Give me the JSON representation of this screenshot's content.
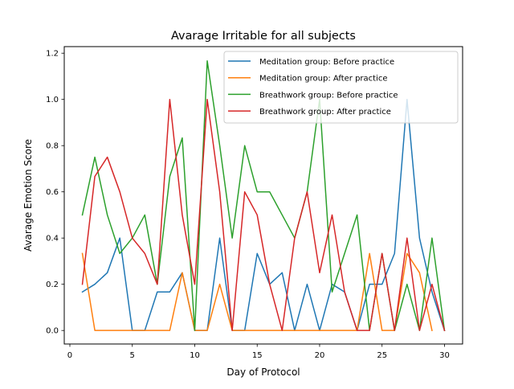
{
  "chart_data": {
    "type": "line",
    "title": "Avarage Irritable for all subjects",
    "xlabel": "Day of Protocol",
    "ylabel": "Avarage Emotion Score",
    "xlim": [
      -0.45,
      31.45
    ],
    "ylim": [
      -0.0585,
      1.2285
    ],
    "xticks": [
      0,
      5,
      10,
      15,
      20,
      25,
      30
    ],
    "yticks": [
      0.0,
      0.2,
      0.4,
      0.6,
      0.8,
      1.0,
      1.2
    ],
    "xtick_labels": [
      "0",
      "5",
      "10",
      "15",
      "20",
      "25",
      "30"
    ],
    "ytick_labels": [
      "0.0",
      "0.2",
      "0.4",
      "0.6",
      "0.8",
      "1.0",
      "1.2"
    ],
    "grid": false,
    "legend_position": "top-right",
    "series": [
      {
        "name": "Meditation group: Before practice",
        "color": "#1f77b4",
        "x": [
          1,
          2,
          3,
          4,
          5,
          6,
          7,
          8,
          9,
          10,
          11,
          12,
          13,
          14,
          15,
          16,
          17,
          18,
          19,
          20,
          21,
          22,
          23,
          24,
          25,
          26,
          27,
          28,
          29,
          30
        ],
        "y": [
          0.1667,
          0.2,
          0.25,
          0.4,
          0.0,
          0.0,
          0.1667,
          0.1667,
          0.25,
          0.0,
          0.0,
          0.4,
          0.0,
          0.0,
          0.3333,
          0.2,
          0.25,
          0.0,
          0.2,
          0.0,
          0.2,
          0.1667,
          0.0,
          0.2,
          0.2,
          0.3333,
          1.0,
          0.4,
          0.1667,
          0.0
        ]
      },
      {
        "name": "Meditation group: After practice",
        "color": "#ff7f0e",
        "x": [
          1,
          2,
          3,
          4,
          5,
          6,
          7,
          8,
          9,
          10,
          11,
          12,
          13,
          14,
          15,
          16,
          17,
          18,
          19,
          20,
          21,
          22,
          23,
          24,
          25,
          26,
          27,
          28,
          29
        ],
        "y": [
          0.3333,
          0.0,
          0.0,
          0.0,
          0.0,
          0.0,
          0.0,
          0.0,
          0.25,
          0.0,
          0.0,
          0.2,
          0.0,
          0.0,
          0.0,
          0.0,
          0.0,
          0.0,
          0.0,
          0.0,
          0.0,
          0.0,
          0.0,
          0.3333,
          0.0,
          0.0,
          0.3333,
          0.25,
          0.0
        ]
      },
      {
        "name": "Breathwork group: Before practice",
        "color": "#2ca02c",
        "x": [
          1,
          2,
          3,
          4,
          5,
          6,
          7,
          8,
          9,
          10,
          11,
          12,
          13,
          14,
          15,
          16,
          17,
          18,
          19,
          20,
          21,
          22,
          23,
          24,
          25,
          26,
          27,
          28,
          29,
          30
        ],
        "y": [
          0.5,
          0.75,
          0.5,
          0.3333,
          0.4,
          0.5,
          0.2,
          0.6667,
          0.8333,
          0.0,
          1.1667,
          0.8,
          0.4,
          0.8,
          0.6,
          0.6,
          0.5,
          0.4,
          0.6,
          1.0,
          0.1667,
          0.3333,
          0.5,
          0.0,
          0.3333,
          0.0,
          0.2,
          0.0,
          0.4,
          0.0
        ]
      },
      {
        "name": "Breathwork group: After practice",
        "color": "#d62728",
        "x": [
          1,
          2,
          3,
          4,
          5,
          6,
          7,
          8,
          9,
          10,
          11,
          12,
          13,
          14,
          15,
          16,
          17,
          18,
          19,
          20,
          21,
          22,
          23,
          24,
          25,
          26,
          27,
          28,
          29,
          30
        ],
        "y": [
          0.2,
          0.6667,
          0.75,
          0.6,
          0.4,
          0.3333,
          0.2,
          1.0,
          0.5,
          0.2,
          1.0,
          0.6,
          0.0,
          0.6,
          0.5,
          0.2,
          0.0,
          0.4,
          0.6,
          0.25,
          0.5,
          0.1667,
          0.0,
          0.0,
          0.3333,
          0.0,
          0.4,
          0.0,
          0.2,
          0.0
        ]
      }
    ]
  }
}
